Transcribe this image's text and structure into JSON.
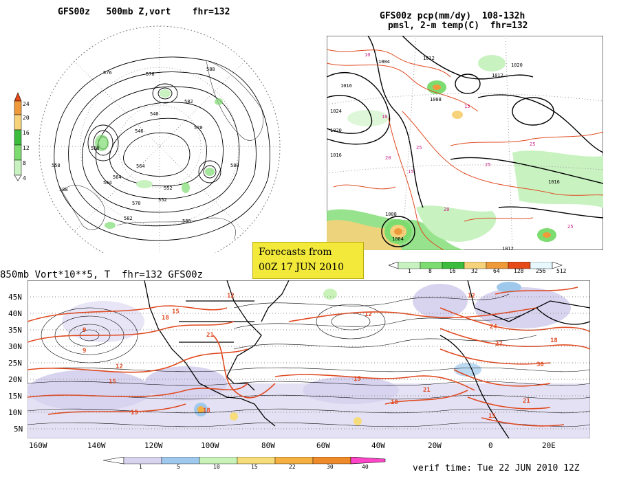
{
  "panel1": {
    "title": "GFS00z   500mb Z,vort    fhr=132",
    "legend_levels": [
      "24",
      "20",
      "16",
      "12",
      "8",
      "4"
    ],
    "contour_labels": [
      "588",
      "576",
      "564",
      "552",
      "546",
      "540",
      "570",
      "582",
      "564",
      "558",
      "588",
      "576",
      "582",
      "588",
      "558",
      "564",
      "570",
      "552",
      "588"
    ]
  },
  "panel2": {
    "title_line1": "GFS00z pcp(mm/dy)  108-132h",
    "title_line2": "pmsl, 2-m temp(C)  fhr=132",
    "legend_levels": [
      "1",
      "8",
      "16",
      "32",
      "64",
      "128",
      "256",
      "512"
    ],
    "pressure_labels": [
      "1004",
      "1012",
      "1016",
      "1008",
      "1020",
      "1016",
      "1012",
      "1008",
      "1004",
      "1012",
      "1016",
      "1020",
      "1024"
    ],
    "temp_labels": [
      "10",
      "15",
      "20",
      "25",
      "25",
      "25",
      "15",
      "20",
      "10",
      "25"
    ]
  },
  "banner": {
    "line1": "Forecasts from",
    "line2": "00Z 17 JUN 2010"
  },
  "panel3": {
    "title": "850mb Vort*10**5, T  fhr=132 GFS00z",
    "lat_labels": [
      "45N",
      "40N",
      "35N",
      "30N",
      "25N",
      "20N",
      "15N",
      "10N",
      "5N"
    ],
    "lon_labels": [
      "160W",
      "140W",
      "120W",
      "100W",
      "80W",
      "60W",
      "40W",
      "20W",
      "0",
      "20E"
    ],
    "legend_levels": [
      "1",
      "5",
      "10",
      "15",
      "22",
      "30",
      "40"
    ],
    "temp_labels": [
      "18",
      "15",
      "12",
      "9",
      "12",
      "15",
      "18",
      "21",
      "15",
      "12",
      "15",
      "18",
      "21",
      "24",
      "27",
      "30",
      "21",
      "18",
      "15",
      "12",
      "9"
    ],
    "verif_time": "verif time: Tue 22 JUN 2010 12Z"
  },
  "colors": {
    "vort_legend": [
      "#ffffff",
      "#d8d4f0",
      "#9fc9ec",
      "#c8f2b8",
      "#f6dc7a",
      "#f4b040",
      "#ee8a2a",
      "#ff44c8"
    ],
    "pcp_legend": [
      "#ffffff",
      "#c8f2c0",
      "#7ddc70",
      "#3cbc3c",
      "#f6d27a",
      "#ee9a3a",
      "#e64a18",
      "#e8f8ff"
    ],
    "z_legend": [
      "#ffffff",
      "#c8f2c0",
      "#7ddc70",
      "#3cbc3c",
      "#f6d27a",
      "#ee9a3a",
      "#e64a18"
    ],
    "temp_contour": "#e04a20",
    "ocean_contour": "#000000"
  }
}
